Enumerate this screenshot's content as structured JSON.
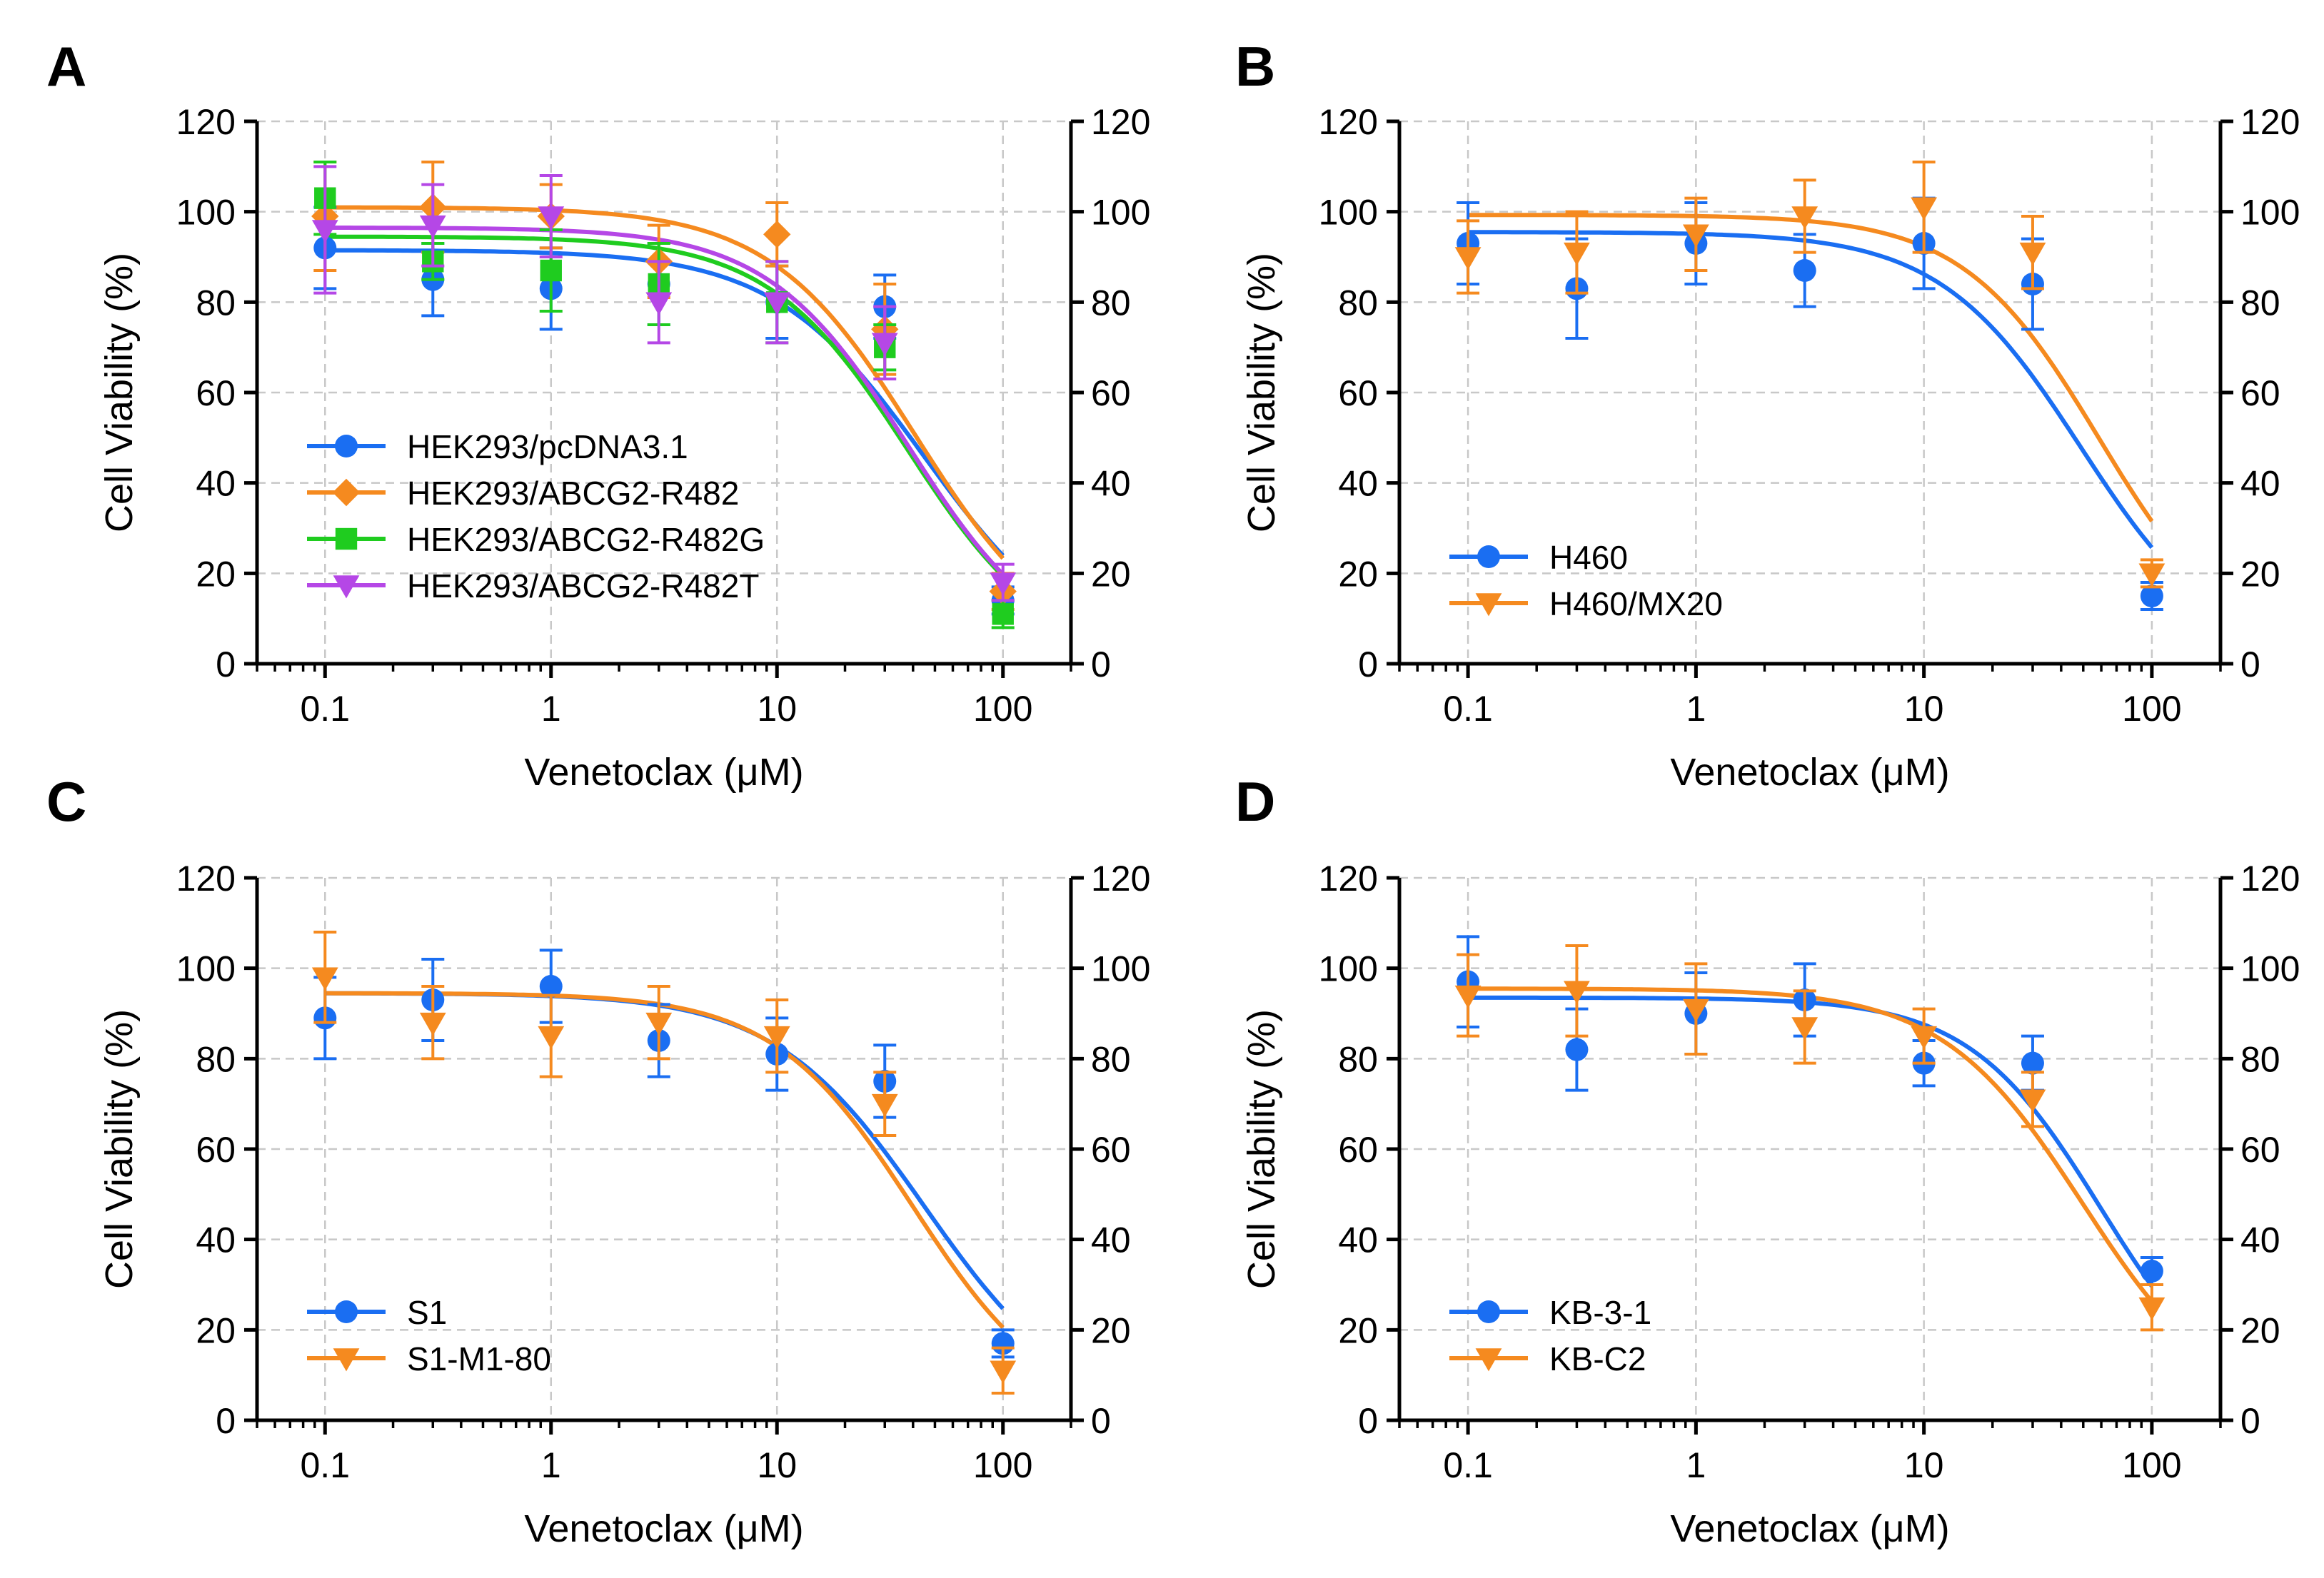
{
  "chart_data": [
    {
      "panel_label": "A",
      "type": "scatter",
      "xscale": "log",
      "xlabel": "Venetoclax (μM)",
      "ylabel": "Cell Viability (%)",
      "xlim": [
        0.05,
        200
      ],
      "ylim": [
        0,
        120
      ],
      "x_ticks": [
        "0.1",
        "1",
        "10",
        "100"
      ],
      "x_tick_values": [
        0.1,
        1,
        10,
        100
      ],
      "y_ticks": [
        "0",
        "20",
        "40",
        "60",
        "80",
        "100",
        "120"
      ],
      "y_tick_values": [
        0,
        20,
        40,
        60,
        80,
        100,
        120
      ],
      "grid": true,
      "legend_position": "bottom-left",
      "x": [
        0.1,
        0.3,
        1,
        3,
        10,
        30,
        100
      ],
      "series": [
        {
          "name": "HEK293/pcDNA3.1",
          "color": "#1a6ef2",
          "marker": "circle",
          "values": [
            92,
            85,
            83,
            84,
            80,
            79,
            14
          ],
          "errors": [
            9,
            8,
            9,
            9,
            8,
            7,
            3
          ],
          "fit": {
            "top": 91.5,
            "ic50": 45,
            "hill": 1.3
          }
        },
        {
          "name": "HEK293/ABCG2-R482",
          "color": "#f58a1f",
          "marker": "diamond",
          "values": [
            99,
            101,
            99,
            89,
            95,
            74,
            16
          ],
          "errors": [
            12,
            10,
            7,
            8,
            7,
            10,
            4
          ],
          "fit": {
            "top": 101,
            "ic50": 41,
            "hill": 1.35
          }
        },
        {
          "name": "HEK293/ABCG2-R482G",
          "color": "#1fcc1f",
          "marker": "square",
          "values": [
            103,
            89,
            87,
            84,
            80,
            70,
            11
          ],
          "errors": [
            8,
            4,
            9,
            9,
            9,
            5,
            3
          ],
          "fit": {
            "top": 94.5,
            "ic50": 38,
            "hill": 1.4
          }
        },
        {
          "name": "HEK293/ABCG2-R482T",
          "color": "#b547e6",
          "marker": "triangle-down",
          "values": [
            96,
            97,
            99,
            80,
            80,
            71,
            18
          ],
          "errors": [
            14,
            9,
            9,
            9,
            9,
            8,
            4
          ],
          "fit": {
            "top": 96.5,
            "ic50": 38,
            "hill": 1.4
          }
        }
      ]
    },
    {
      "panel_label": "B",
      "type": "scatter",
      "xscale": "log",
      "xlabel": "Venetoclax (μM)",
      "ylabel": "Cell Viability (%)",
      "xlim": [
        0.05,
        200
      ],
      "ylim": [
        0,
        120
      ],
      "x_ticks": [
        "0.1",
        "1",
        "10",
        "100"
      ],
      "x_tick_values": [
        0.1,
        1,
        10,
        100
      ],
      "y_ticks": [
        "0",
        "20",
        "40",
        "60",
        "80",
        "100",
        "120"
      ],
      "y_tick_values": [
        0,
        20,
        40,
        60,
        80,
        100,
        120
      ],
      "grid": true,
      "legend_position": "bottom-left",
      "x": [
        0.1,
        0.3,
        1,
        3,
        10,
        30,
        100
      ],
      "series": [
        {
          "name": "H460",
          "color": "#1a6ef2",
          "marker": "circle",
          "values": [
            93,
            83,
            93,
            87,
            93,
            84,
            15
          ],
          "errors": [
            9,
            11,
            9,
            8,
            10,
            10,
            3
          ],
          "fit": {
            "top": 95.5,
            "ic50": 49,
            "hill": 1.4
          }
        },
        {
          "name": "H460/MX20",
          "color": "#f58a1f",
          "marker": "triangle-down",
          "values": [
            90,
            91,
            95,
            99,
            101,
            91,
            20
          ],
          "errors": [
            8,
            9,
            8,
            8,
            10,
            8,
            3
          ],
          "fit": {
            "top": 99.3,
            "ic50": 59,
            "hill": 1.45
          }
        }
      ]
    },
    {
      "panel_label": "C",
      "type": "scatter",
      "xscale": "log",
      "xlabel": "Venetoclax (μM)",
      "ylabel": "Cell Viability (%)",
      "xlim": [
        0.05,
        200
      ],
      "ylim": [
        0,
        120
      ],
      "x_ticks": [
        "0.1",
        "1",
        "10",
        "100"
      ],
      "x_tick_values": [
        0.1,
        1,
        10,
        100
      ],
      "y_ticks": [
        "0",
        "20",
        "40",
        "60",
        "80",
        "100",
        "120"
      ],
      "y_tick_values": [
        0,
        20,
        40,
        60,
        80,
        100,
        120
      ],
      "grid": true,
      "legend_position": "bottom-left",
      "x": [
        0.1,
        0.3,
        1,
        3,
        10,
        30,
        100
      ],
      "series": [
        {
          "name": "S1",
          "color": "#1a6ef2",
          "marker": "circle",
          "values": [
            89,
            93,
            96,
            84,
            81,
            75,
            17
          ],
          "errors": [
            9,
            9,
            8,
            8,
            8,
            8,
            3
          ],
          "fit": {
            "top": 94.5,
            "ic50": 45,
            "hill": 1.3
          }
        },
        {
          "name": "S1-M1-80",
          "color": "#f58a1f",
          "marker": "triangle-down",
          "values": [
            98,
            88,
            85,
            88,
            85,
            70,
            11
          ],
          "errors": [
            10,
            8,
            9,
            8,
            8,
            7,
            5
          ],
          "fit": {
            "top": 94.5,
            "ic50": 40,
            "hill": 1.4
          }
        }
      ]
    },
    {
      "panel_label": "D",
      "type": "scatter",
      "xscale": "log",
      "xlabel": "Venetoclax (μM)",
      "ylabel": "Cell Viability (%)",
      "xlim": [
        0.05,
        200
      ],
      "ylim": [
        0,
        120
      ],
      "x_ticks": [
        "0.1",
        "1",
        "10",
        "100"
      ],
      "x_tick_values": [
        0.1,
        1,
        10,
        100
      ],
      "y_ticks": [
        "0",
        "20",
        "40",
        "60",
        "80",
        "100",
        "120"
      ],
      "y_tick_values": [
        0,
        20,
        40,
        60,
        80,
        100,
        120
      ],
      "grid": true,
      "legend_position": "bottom-left",
      "x": [
        0.1,
        0.3,
        1,
        3,
        10,
        30,
        100
      ],
      "series": [
        {
          "name": "KB-3-1",
          "color": "#1a6ef2",
          "marker": "circle",
          "values": [
            97,
            82,
            90,
            93,
            79,
            79,
            33
          ],
          "errors": [
            10,
            9,
            9,
            8,
            5,
            6,
            3
          ],
          "fit": {
            "top": 93.5,
            "ic50": 60,
            "hill": 1.5
          }
        },
        {
          "name": "KB-C2",
          "color": "#f58a1f",
          "marker": "triangle-down",
          "values": [
            94,
            95,
            91,
            87,
            85,
            71,
            25
          ],
          "errors": [
            9,
            10,
            10,
            8,
            6,
            6,
            5
          ],
          "fit": {
            "top": 95.5,
            "ic50": 50,
            "hill": 1.4
          }
        }
      ]
    }
  ]
}
